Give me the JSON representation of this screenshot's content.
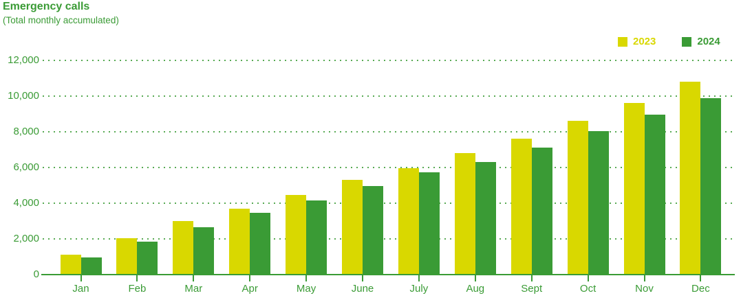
{
  "header": {
    "title": "Emergency calls",
    "subtitle": "(Total monthly accumulated)"
  },
  "chart_data": {
    "type": "bar",
    "title": "Emergency calls",
    "subtitle": "(Total monthly accumulated)",
    "categories": [
      "Jan",
      "Feb",
      "Mar",
      "Apr",
      "May",
      "June",
      "July",
      "Aug",
      "Sept",
      "Oct",
      "Nov",
      "Dec"
    ],
    "series": [
      {
        "name": "2023",
        "color": "#d9d800",
        "values": [
          1100,
          2050,
          3000,
          3700,
          4450,
          5300,
          5950,
          6800,
          7600,
          8600,
          9600,
          10800
        ]
      },
      {
        "name": "2024",
        "color": "#3a9b35",
        "values": [
          950,
          1850,
          2650,
          3450,
          4150,
          4950,
          5750,
          6300,
          7100,
          8050,
          8950,
          9900
        ]
      }
    ],
    "ylim": [
      0,
      12000
    ],
    "ytick_values": [
      0,
      2000,
      4000,
      6000,
      8000,
      10000,
      12000
    ],
    "ytick_labels": [
      "0",
      "2,000",
      "4,000",
      "6,000",
      "8,000",
      "10,000",
      "12,000"
    ],
    "grid": "horizontal-dotted",
    "legend_position": "top-right",
    "axis_color": "#3a9b35",
    "label_color": "#3a9b35",
    "background_color": "#ffffff"
  }
}
